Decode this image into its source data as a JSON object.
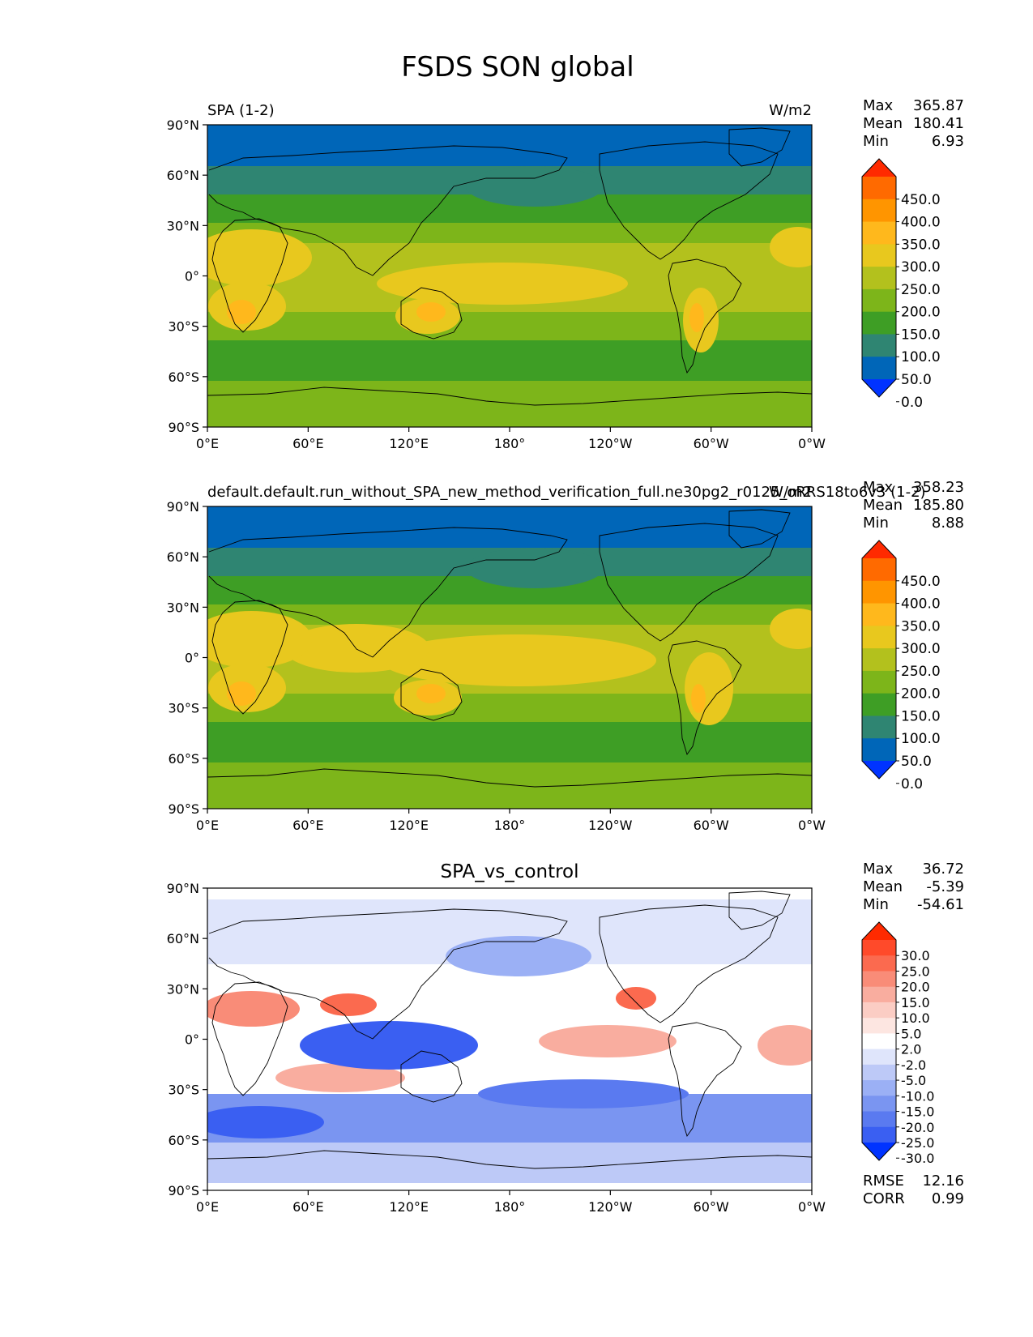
{
  "figure": {
    "title": "FSDS SON global"
  },
  "axes": {
    "lat_ticks": [
      "90°N",
      "60°N",
      "30°N",
      "0°",
      "30°S",
      "60°S",
      "90°S"
    ],
    "lon_ticks": [
      "0°E",
      "60°E",
      "120°E",
      "180°",
      "120°W",
      "60°W",
      "0°W"
    ]
  },
  "chart_data": [
    {
      "type": "heatmap",
      "panel": "test",
      "title_left": "SPA (1-2)",
      "title_right": "W/m2",
      "stats": [
        {
          "label": "Max",
          "value": "365.87"
        },
        {
          "label": "Mean",
          "value": "180.41"
        },
        {
          "label": "Min",
          "value": "6.93"
        }
      ],
      "colorbar": {
        "levels": [
          "450.0",
          "400.0",
          "350.0",
          "300.0",
          "250.0",
          "200.0",
          "150.0",
          "100.0",
          "50.0",
          "0.0"
        ],
        "colors": [
          "#ff2a00",
          "#ff6a00",
          "#ff9500",
          "#ffb81c",
          "#e8c81e",
          "#b3c11d",
          "#7db51a",
          "#3e9e25",
          "#2f8572",
          "#0066b8",
          "#0033ff"
        ]
      },
      "xlim": [
        0,
        360
      ],
      "ylim": [
        -90,
        90
      ]
    },
    {
      "type": "heatmap",
      "panel": "reference",
      "title_left": "default.default.run_without_SPA_new_method_verification_full.ne30pg2_r0125_oRRS18to6v3 (1-2)",
      "title_right": "W/m2",
      "stats": [
        {
          "label": "Max",
          "value": "358.23"
        },
        {
          "label": "Mean",
          "value": "185.80"
        },
        {
          "label": "Min",
          "value": "8.88"
        }
      ],
      "colorbar": {
        "levels": [
          "450.0",
          "400.0",
          "350.0",
          "300.0",
          "250.0",
          "200.0",
          "150.0",
          "100.0",
          "50.0",
          "0.0"
        ],
        "colors": [
          "#ff2a00",
          "#ff6a00",
          "#ff9500",
          "#ffb81c",
          "#e8c81e",
          "#b3c11d",
          "#7db51a",
          "#3e9e25",
          "#2f8572",
          "#0066b8",
          "#0033ff"
        ]
      },
      "xlim": [
        0,
        360
      ],
      "ylim": [
        -90,
        90
      ]
    },
    {
      "type": "heatmap",
      "panel": "difference",
      "title_center": "SPA_vs_control",
      "stats": [
        {
          "label": "Max",
          "value": "36.72"
        },
        {
          "label": "Mean",
          "value": "-5.39"
        },
        {
          "label": "Min",
          "value": "-54.61"
        }
      ],
      "metrics": [
        {
          "label": "RMSE",
          "value": "12.16"
        },
        {
          "label": "CORR",
          "value": "0.99"
        }
      ],
      "colorbar": {
        "levels": [
          "30.0",
          "25.0",
          "20.0",
          "15.0",
          "10.0",
          "5.0",
          "2.0",
          "-2.0",
          "-5.0",
          "-10.0",
          "-15.0",
          "-20.0",
          "-25.0",
          "-30.0"
        ],
        "colors": [
          "#ff2a00",
          "#ff4a2a",
          "#fb6a4f",
          "#f98c78",
          "#f9ad9f",
          "#fbcdc4",
          "#fde6e1",
          "#ffffff",
          "#dfe5fb",
          "#bdc9f7",
          "#9bb0f5",
          "#7a95f1",
          "#5a7af0",
          "#3a5ff2",
          "#0033ff"
        ]
      },
      "xlim": [
        0,
        360
      ],
      "ylim": [
        -90,
        90
      ]
    }
  ]
}
